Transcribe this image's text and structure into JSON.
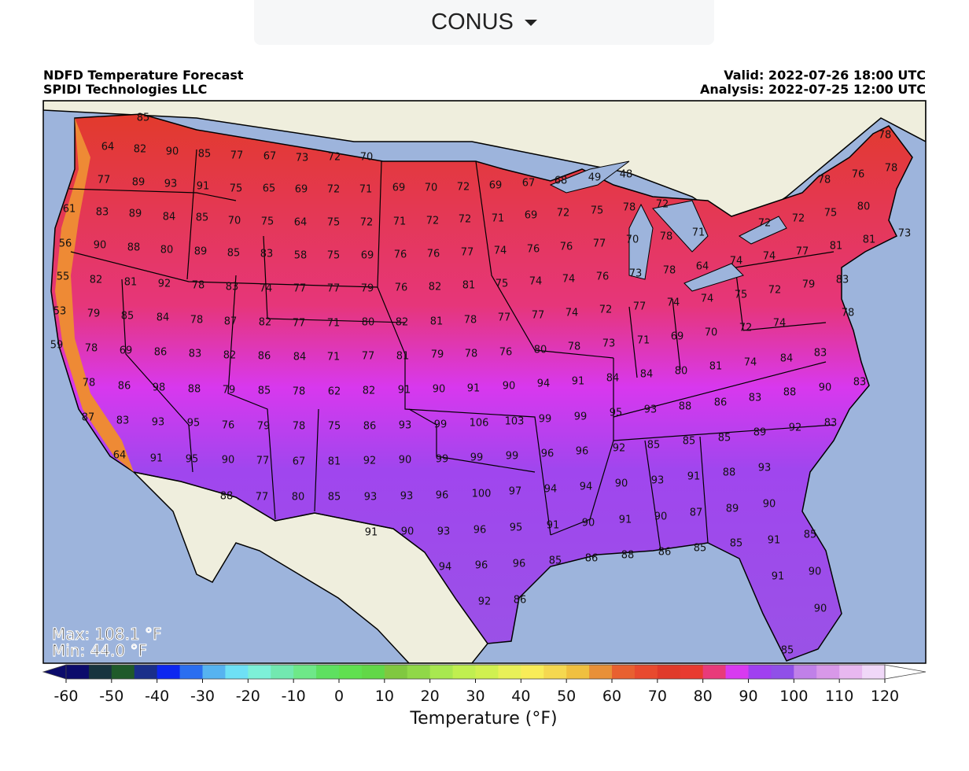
{
  "dropdown": {
    "label": "CONUS"
  },
  "header": {
    "title": "NDFD Temperature Forecast",
    "org": "SPIDI Technologies LLC",
    "valid": "Valid: 2022-07-26 18:00 UTC",
    "analysis": "Analysis: 2022-07-25 12:00 UTC"
  },
  "stats": {
    "max": "Max: 108.1 °F",
    "min": "Min: 44.0 °F"
  },
  "map_labels": [
    85,
    64,
    82,
    90,
    85,
    77,
    67,
    73,
    72,
    70,
    77,
    89,
    93,
    91,
    75,
    65,
    69,
    72,
    71,
    69,
    70,
    72,
    69,
    67,
    68,
    49,
    48,
    78,
    76,
    78,
    78,
    61,
    83,
    89,
    84,
    85,
    70,
    75,
    64,
    75,
    72,
    71,
    72,
    72,
    71,
    69,
    72,
    75,
    78,
    72,
    72,
    72,
    75,
    80,
    56,
    90,
    88,
    80,
    89,
    85,
    83,
    58,
    75,
    69,
    76,
    76,
    77,
    74,
    76,
    76,
    77,
    70,
    78,
    71,
    74,
    77,
    81,
    81,
    73,
    55,
    82,
    81,
    92,
    78,
    83,
    74,
    77,
    77,
    79,
    76,
    82,
    81,
    75,
    74,
    74,
    76,
    73,
    78,
    64,
    74,
    83,
    53,
    79,
    85,
    84,
    78,
    87,
    82,
    77,
    71,
    80,
    82,
    81,
    78,
    77,
    77,
    74,
    72,
    77,
    74,
    74,
    75,
    72,
    79,
    78,
    59,
    78,
    69,
    86,
    83,
    82,
    86,
    84,
    71,
    77,
    81,
    79,
    78,
    76,
    80,
    78,
    73,
    71,
    69,
    70,
    72,
    74,
    84,
    83,
    78,
    86,
    98,
    88,
    79,
    85,
    78,
    62,
    82,
    91,
    90,
    91,
    90,
    94,
    91,
    84,
    84,
    80,
    81,
    74,
    83,
    88,
    90,
    83,
    87,
    83,
    93,
    95,
    76,
    79,
    78,
    75,
    86,
    93,
    99,
    106,
    103,
    99,
    99,
    95,
    93,
    88,
    86,
    85,
    89,
    92,
    83,
    64,
    91,
    95,
    90,
    77,
    67,
    81,
    92,
    90,
    99,
    99,
    99,
    96,
    96,
    92,
    85,
    85,
    88,
    93,
    91,
    88,
    77,
    80,
    85,
    93,
    93,
    96,
    100,
    97,
    94,
    94,
    90,
    93,
    90,
    89,
    91,
    90,
    93,
    96,
    95,
    91,
    90,
    91,
    90,
    87,
    85,
    91,
    85,
    85,
    86,
    94,
    96,
    96,
    85,
    86,
    88,
    91,
    90,
    90,
    85,
    92,
    86
  ],
  "colorbar": {
    "label": "Temperature (°F)",
    "lim": [
      -60,
      120
    ],
    "ticks": [
      -60,
      -50,
      -40,
      -30,
      -20,
      -10,
      0,
      10,
      20,
      30,
      40,
      50,
      60,
      70,
      80,
      90,
      100,
      110,
      120
    ],
    "under_color": "#0b0b6b",
    "over_color": "#ffffff",
    "colors": [
      "#0b0b6b",
      "#18343f",
      "#1f5a2a",
      "#1a2f8a",
      "#0d27f0",
      "#2a6ef0",
      "#56b3f0",
      "#6ee0f5",
      "#7df0d8",
      "#72e8b0",
      "#6ee888",
      "#5ee060",
      "#60e050",
      "#62d848",
      "#80c840",
      "#90d848",
      "#a8e850",
      "#c0ef50",
      "#d0f050",
      "#e8f058",
      "#f8ec58",
      "#f5d850",
      "#f0c040",
      "#e89038",
      "#e86030",
      "#e84a2e",
      "#e03a2a",
      "#e83a30",
      "#e83a7a",
      "#d83af0",
      "#a040f0",
      "#9050e8",
      "#c080e8",
      "#d898e8",
      "#e8b8f0",
      "#f0d8f8"
    ]
  }
}
